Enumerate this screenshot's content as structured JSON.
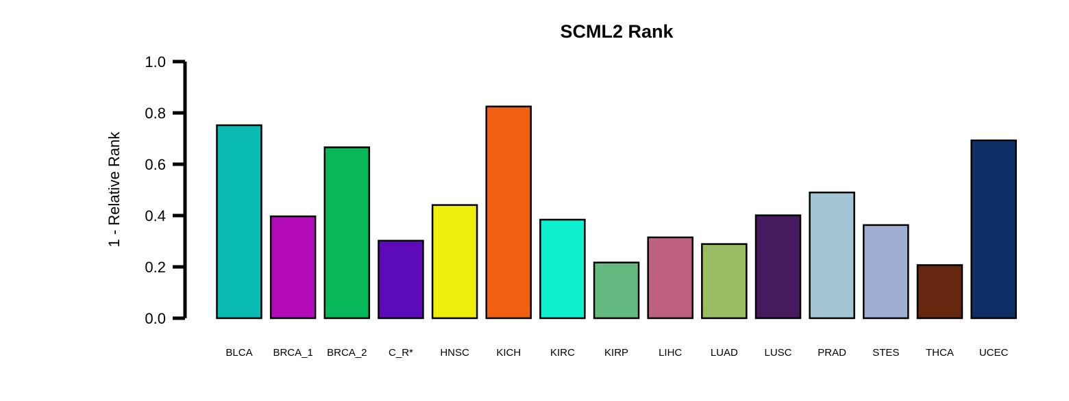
{
  "chart_data": {
    "type": "bar",
    "title": "SCML2 Rank",
    "ylabel": "1 - Relative Rank",
    "xlabel": "",
    "ylim": [
      0,
      1
    ],
    "yticks": [
      "0.0",
      "0.2",
      "0.4",
      "0.6",
      "0.8",
      "1.0"
    ],
    "grid": false,
    "legend": "none",
    "categories": [
      "BLCA",
      "BRCA_1",
      "BRCA_2",
      "C_R*",
      "HNSC",
      "KICH",
      "KIRC",
      "KIRP",
      "LIHC",
      "LUAD",
      "LUSC",
      "PRAD",
      "STES",
      "THCA",
      "UCEC"
    ],
    "values": [
      0.752,
      0.397,
      0.666,
      0.302,
      0.441,
      0.825,
      0.384,
      0.217,
      0.315,
      0.289,
      0.401,
      0.49,
      0.363,
      0.207,
      0.693
    ],
    "colors": [
      "#0ABAB5",
      "#B30BB8",
      "#08B858",
      "#5D0ABA",
      "#EEEE0A",
      "#F06010",
      "#0EEFD0",
      "#64BA80",
      "#BE6080",
      "#98BC62",
      "#461A5E",
      "#A2C6D4",
      "#A0AED4",
      "#662610",
      "#0E2E66"
    ]
  }
}
